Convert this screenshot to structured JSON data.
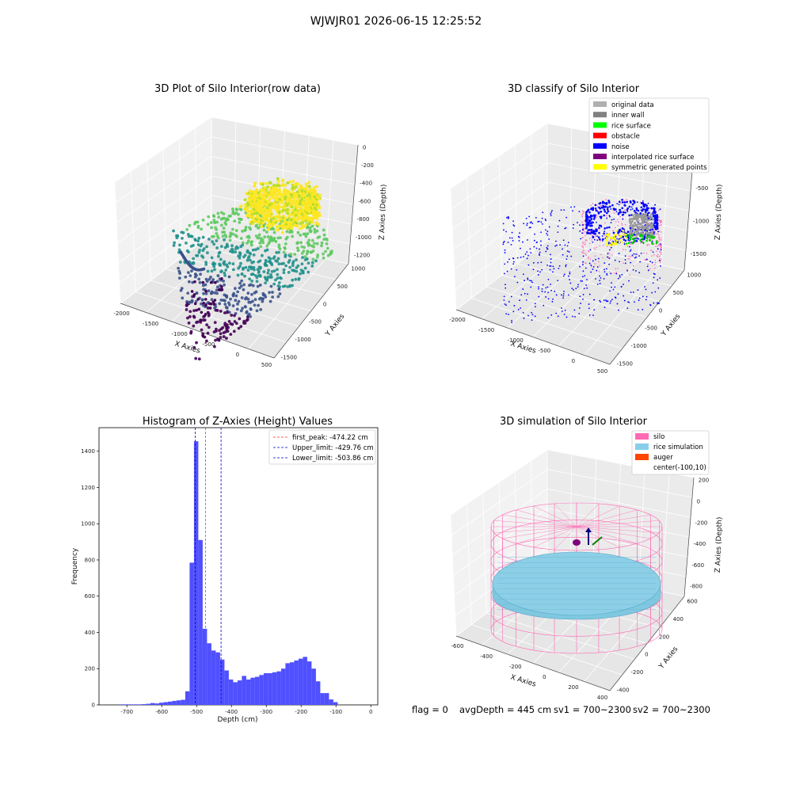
{
  "suptitle": "WJWJR01 2026-06-15 12:25:52",
  "footer": {
    "flag": "flag = 0",
    "avg_depth": "avgDepth = 445 cm",
    "sv1": "sv1 = 700~2300",
    "sv2": "sv2 = 700~2300"
  },
  "chart_data": [
    {
      "id": "raw",
      "type": "scatter",
      "title": "3D Plot of Silo Interior(row data)",
      "xlabel": "X Axies",
      "ylabel": "Y Axies",
      "zlabel": "Z Axies (Depth)",
      "xticks": [
        "-2000",
        "-1500",
        "-1000",
        "-500",
        "0",
        "500"
      ],
      "yticks": [
        "-1500",
        "-1000",
        "-500",
        "0",
        "500",
        "1000"
      ],
      "zticks": [
        "0",
        "-200",
        "-400",
        "-600",
        "-800",
        "-1000",
        "-1200"
      ],
      "colormap": [
        "#440154",
        "#3b528b",
        "#21918c",
        "#5ec962",
        "#fde725"
      ]
    },
    {
      "id": "classify",
      "type": "scatter",
      "title": "3D classify of Silo Interior",
      "xlabel": "X Axies",
      "ylabel": "Y Axies",
      "zlabel": "Z Axies (Depth)",
      "xticks": [
        "-2000",
        "-1500",
        "-1000",
        "-500",
        "0",
        "500"
      ],
      "yticks": [
        "-1500",
        "-1000",
        "-500",
        "0",
        "500",
        "1000"
      ],
      "zticks": [
        "0",
        "-500",
        "-1000",
        "-1500"
      ],
      "legend": [
        {
          "label": "original data",
          "color": "#b0b0b0"
        },
        {
          "label": "inner wall",
          "color": "#808080"
        },
        {
          "label": "rice surface",
          "color": "#00ff00"
        },
        {
          "label": "obstacle",
          "color": "#ff0000"
        },
        {
          "label": "noise",
          "color": "#0000ff"
        },
        {
          "label": "interpolated rice surface",
          "color": "#800080"
        },
        {
          "label": "symmetric generated points",
          "color": "#ffff00"
        }
      ]
    },
    {
      "id": "histogram",
      "type": "bar",
      "title": "Histogram of Z-Axies (Height) Values",
      "xlabel": "Depth (cm)",
      "ylabel": "Frequency",
      "xlim": [
        -780,
        20
      ],
      "ylim": [
        0,
        1530
      ],
      "xticks": [
        -700,
        -600,
        -500,
        -400,
        -300,
        -200,
        -100,
        0
      ],
      "yticks": [
        0,
        200,
        400,
        600,
        800,
        1000,
        1200,
        1400
      ],
      "bin_width": 12.5,
      "bin_start": -720,
      "values": [
        3,
        3,
        3,
        3,
        3,
        4,
        6,
        10,
        8,
        12,
        15,
        18,
        22,
        25,
        28,
        75,
        785,
        1455,
        910,
        420,
        340,
        300,
        290,
        250,
        190,
        140,
        125,
        135,
        160,
        140,
        150,
        155,
        165,
        175,
        175,
        180,
        185,
        200,
        230,
        235,
        245,
        255,
        265,
        240,
        200,
        130,
        65,
        65,
        30,
        15
      ],
      "bar_color": "#5050ff",
      "vlines": [
        {
          "label": "first_peak: -474.22 cm",
          "x": -474.22,
          "color": "#ff3030"
        },
        {
          "label": "Upper_limit: -429.76 cm",
          "x": -429.76,
          "color": "#0000cc"
        },
        {
          "label": "Lower_limit: -503.86 cm",
          "x": -503.86,
          "color": "#0000cc"
        }
      ]
    },
    {
      "id": "simulation",
      "type": "3d",
      "title": "3D simulation of Silo Interior",
      "xlabel": "X Axies",
      "ylabel": "Y Axies",
      "zlabel": "Z Axies (Depth)",
      "xticks": [
        "-600",
        "-400",
        "-200",
        "0",
        "200",
        "400"
      ],
      "yticks": [
        "-400",
        "-200",
        "0",
        "200",
        "400",
        "600"
      ],
      "zticks": [
        "200",
        "0",
        "-200",
        "-400",
        "-600",
        "-800"
      ],
      "legend": [
        {
          "label": "silo",
          "color": "#ff69b4"
        },
        {
          "label": "rice simulation",
          "color": "#87ceeb"
        },
        {
          "label": "auger",
          "color": "#ff4500"
        },
        {
          "label": "center(-100,10)",
          "color": ""
        }
      ]
    }
  ]
}
